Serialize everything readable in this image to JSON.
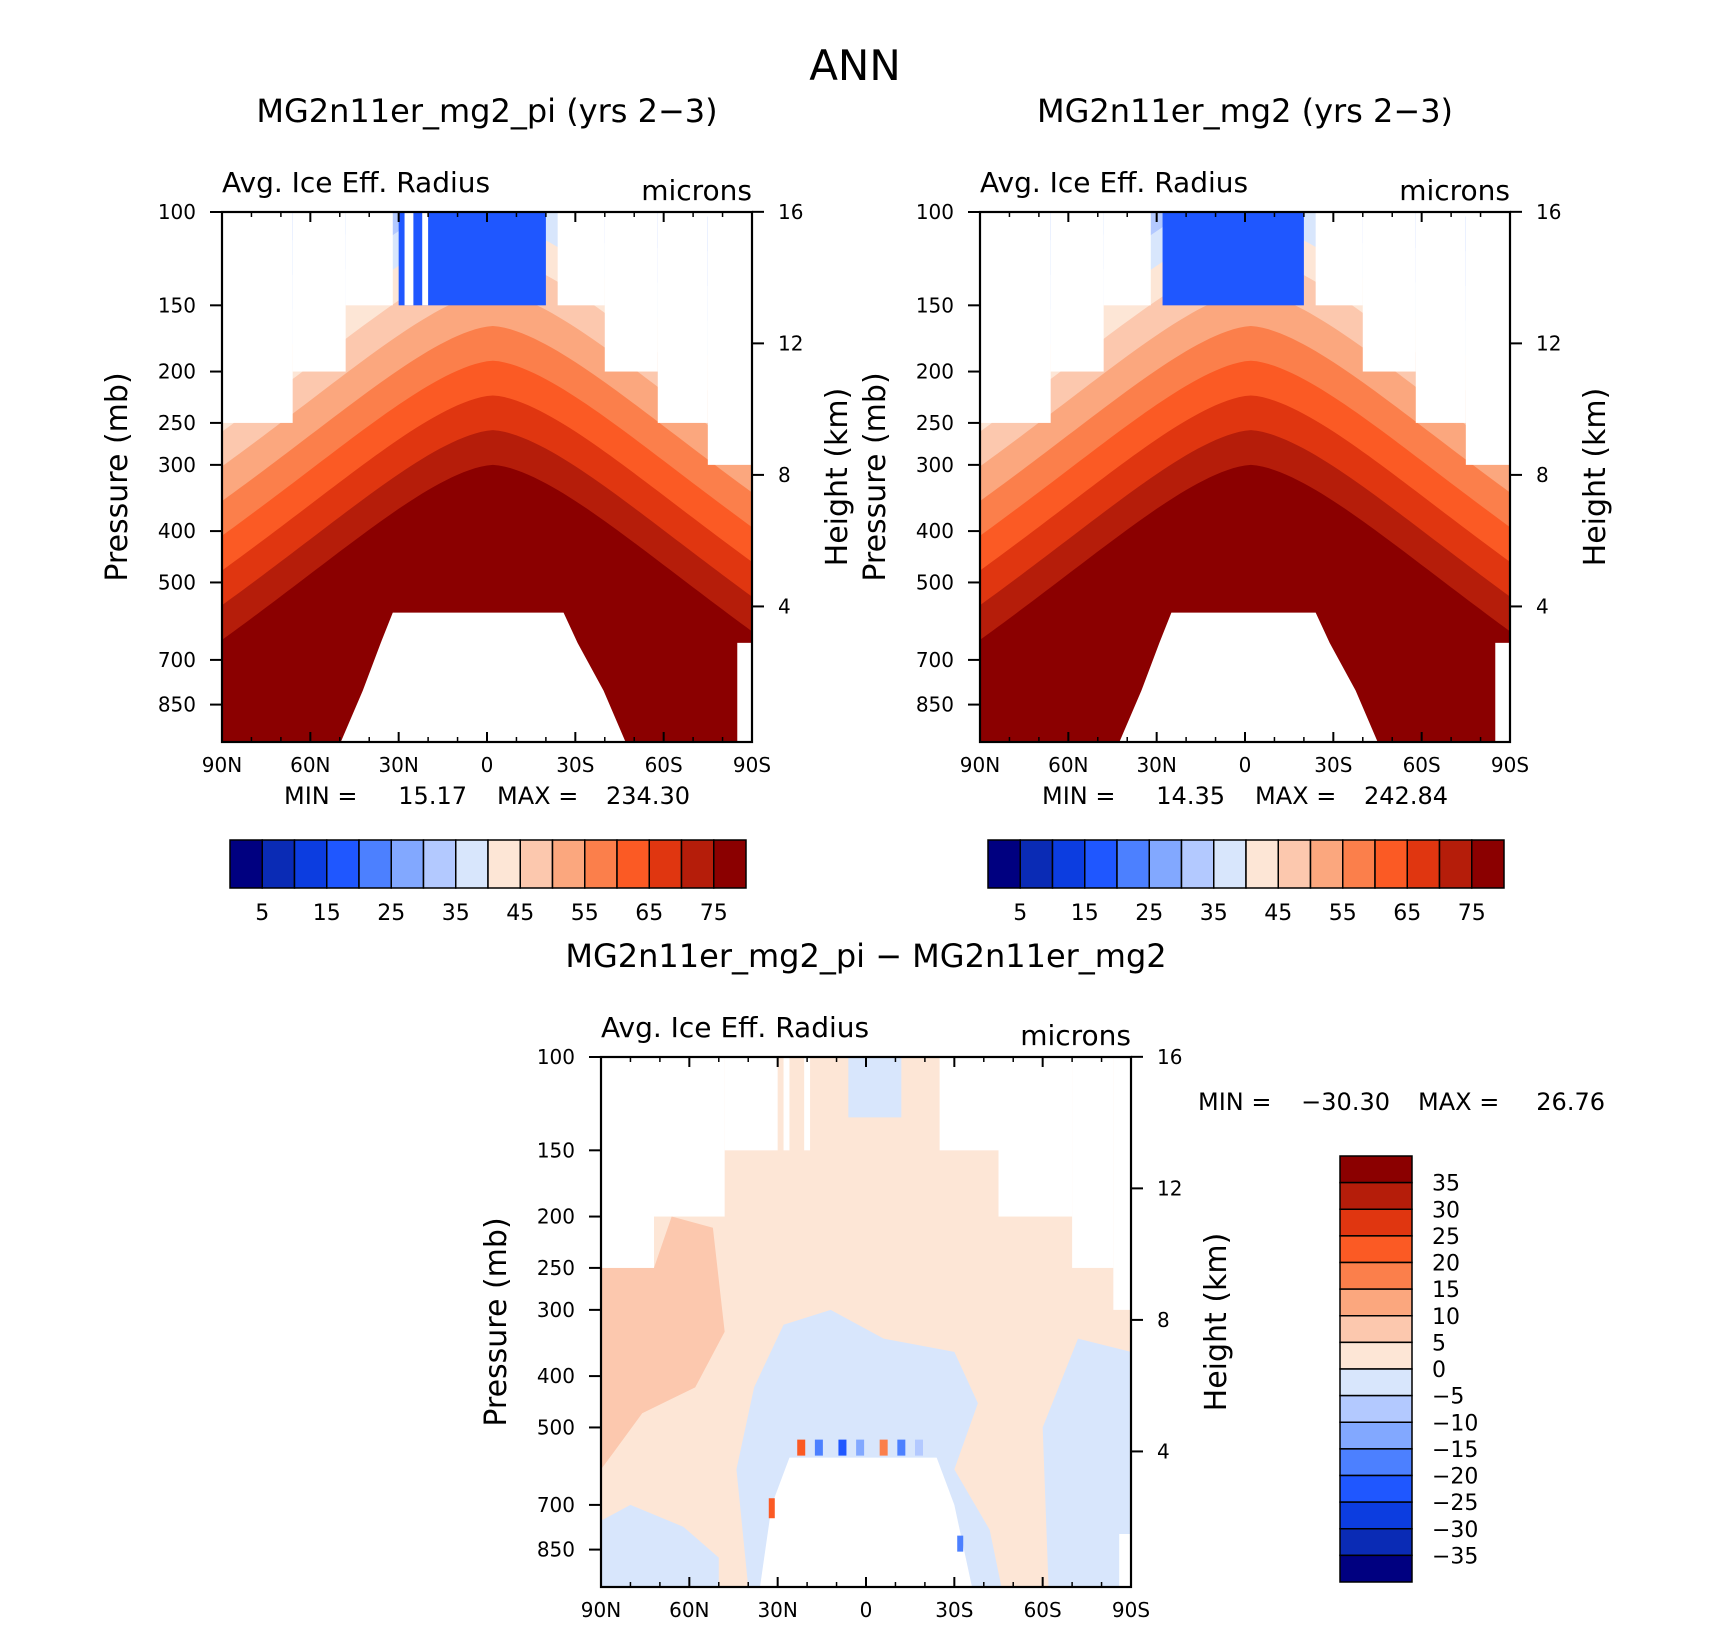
{
  "page_title": "ANN",
  "colors": {
    "abs_scale": [
      "#000080",
      "#0a2bb5",
      "#0c3de0",
      "#1f57ff",
      "#4c80ff",
      "#82a8ff",
      "#b3c9ff",
      "#d8e6fc",
      "#fde6d6",
      "#fcc8ae",
      "#fba77e",
      "#fb7f4b",
      "#fb5a24",
      "#e03610",
      "#b51d0a",
      "#8b0000"
    ],
    "diff_scale": [
      "#000080",
      "#0a2bb5",
      "#0c3de0",
      "#1f57ff",
      "#4c80ff",
      "#82a8ff",
      "#b3c9ff",
      "#d8e6fc",
      "#fde6d6",
      "#fcc8ae",
      "#fba77e",
      "#fb7f4b",
      "#fb5a24",
      "#e03610",
      "#b51d0a",
      "#8b0000"
    ]
  },
  "chart_data": [
    {
      "id": "panel1",
      "type": "heatmap",
      "title": "MG2n11er_mg2_pi (yrs 2−3)",
      "left_label": "Avg. Ice Eff. Radius",
      "units_label": "microns",
      "xlabel": "",
      "ylabel": "Pressure (mb)",
      "y2label": "Height (km)",
      "x_ticks": [
        "90N",
        "60N",
        "30N",
        "0",
        "30S",
        "60S",
        "90S"
      ],
      "y_ticks": [
        "100",
        "150",
        "200",
        "250",
        "300",
        "400",
        "500",
        "700",
        "850"
      ],
      "y_tick_values": [
        100,
        150,
        200,
        250,
        300,
        400,
        500,
        700,
        850
      ],
      "y2_ticks": [
        "16",
        "12",
        "8",
        "4"
      ],
      "y2_tick_values": [
        16,
        12,
        8,
        4
      ],
      "ylim": [
        100,
        1000
      ],
      "xlim": [
        90,
        -90
      ],
      "min_label": "MIN =",
      "min_value": "15.17",
      "max_label": "MAX =",
      "max_value": "234.30",
      "min": 15.17,
      "max": 234.3,
      "colorbar_levels": [
        "5",
        "15",
        "25",
        "35",
        "45",
        "55",
        "65",
        "75"
      ],
      "colorbar_contour_levels": [
        5,
        10,
        15,
        20,
        25,
        30,
        35,
        40,
        45,
        50,
        55,
        60,
        65,
        70,
        75
      ],
      "top_lat_range": [
        30,
        -20
      ],
      "gap_lats": [
        28,
        25
      ],
      "surface_top_mb": 570,
      "surface_lat_range": [
        32,
        -26
      ]
    },
    {
      "id": "panel2",
      "type": "heatmap",
      "title": "MG2n11er_mg2 (yrs 2−3)",
      "left_label": "Avg. Ice Eff. Radius",
      "units_label": "microns",
      "xlabel": "",
      "ylabel": "Pressure (mb)",
      "y2label": "Height (km)",
      "x_ticks": [
        "90N",
        "60N",
        "30N",
        "0",
        "30S",
        "60S",
        "90S"
      ],
      "y_ticks": [
        "100",
        "150",
        "200",
        "250",
        "300",
        "400",
        "500",
        "700",
        "850"
      ],
      "y_tick_values": [
        100,
        150,
        200,
        250,
        300,
        400,
        500,
        700,
        850
      ],
      "y2_ticks": [
        "16",
        "12",
        "8",
        "4"
      ],
      "y2_tick_values": [
        16,
        12,
        8,
        4
      ],
      "ylim": [
        100,
        1000
      ],
      "xlim": [
        90,
        -90
      ],
      "min_label": "MIN =",
      "min_value": "14.35",
      "max_label": "MAX =",
      "max_value": "242.84",
      "min": 14.35,
      "max": 242.84,
      "colorbar_levels": [
        "5",
        "15",
        "25",
        "35",
        "45",
        "55",
        "65",
        "75"
      ],
      "colorbar_contour_levels": [
        5,
        10,
        15,
        20,
        25,
        30,
        35,
        40,
        45,
        50,
        55,
        60,
        65,
        70,
        75
      ],
      "top_lat_range": [
        28,
        -20
      ],
      "surface_top_mb": 570,
      "surface_lat_range": [
        25,
        -24
      ]
    },
    {
      "id": "panel3",
      "type": "heatmap",
      "title": "MG2n11er_mg2_pi − MG2n11er_mg2",
      "left_label": "Avg. Ice Eff. Radius",
      "units_label": "microns",
      "xlabel": "",
      "ylabel": "Pressure (mb)",
      "y2label": "Height (km)",
      "x_ticks": [
        "90N",
        "60N",
        "30N",
        "0",
        "30S",
        "60S",
        "90S"
      ],
      "y_ticks": [
        "100",
        "150",
        "200",
        "250",
        "300",
        "400",
        "500",
        "700",
        "850"
      ],
      "y_tick_values": [
        100,
        150,
        200,
        250,
        300,
        400,
        500,
        700,
        850
      ],
      "y2_ticks": [
        "16",
        "12",
        "8",
        "4"
      ],
      "y2_tick_values": [
        16,
        12,
        8,
        4
      ],
      "ylim": [
        100,
        1000
      ],
      "xlim": [
        90,
        -90
      ],
      "min_label": "MIN =",
      "min_value": "−30.30",
      "max_label": "MAX =",
      "max_value": "26.76",
      "min": -30.3,
      "max": 26.76,
      "colorbar_levels": [
        "35",
        "30",
        "25",
        "20",
        "15",
        "10",
        "5",
        "0",
        "−5",
        "−10",
        "−15",
        "−20",
        "−25",
        "−30",
        "−35"
      ],
      "colorbar_contour_levels": [
        35,
        30,
        25,
        20,
        15,
        10,
        5,
        0,
        -5,
        -10,
        -15,
        -20,
        -25,
        -30,
        -35
      ]
    }
  ]
}
